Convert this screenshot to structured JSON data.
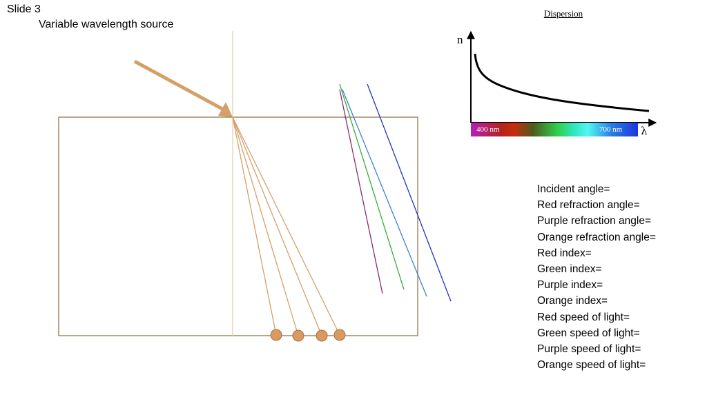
{
  "slide": {
    "title": "Slide 3",
    "subtitle": "Variable wavelength source"
  },
  "dispersion": {
    "title": "Dispersion",
    "y_axis_label": "n",
    "x_axis_label": "λ",
    "spectrum_start_label": "400 nm",
    "spectrum_end_label": "700 nm"
  },
  "questions": [
    "Incident angle=",
    "Red refraction angle=",
    "Purple refraction angle=",
    "Orange refraction angle=",
    "Red index=",
    "Green index=",
    "Purple index=",
    "Orange index=",
    "Red speed of light=",
    "Green speed of light=",
    "Purple speed of light=",
    "Orange speed of light="
  ],
  "colors": {
    "block_border": "#8b6a3e",
    "beam": "#d4a06a",
    "normal_line": "#e8c8a8",
    "dot_fill": "#d89a62",
    "dot_stroke": "#a9703d",
    "ref_purple": "#8b2a6b",
    "ref_green": "#3aaa3a",
    "ref_blue": "#3a82d0",
    "ref_navy": "#2233bb"
  }
}
